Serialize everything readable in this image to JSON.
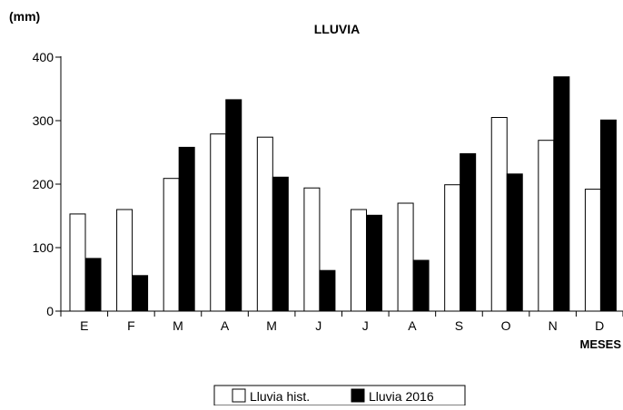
{
  "chart_data": {
    "type": "bar",
    "title": "LLUVIA",
    "ylabel": "(mm)",
    "xlabel": "MESES",
    "categories": [
      "E",
      "F",
      "M",
      "A",
      "M",
      "J",
      "J",
      "A",
      "S",
      "O",
      "N",
      "D"
    ],
    "series": [
      {
        "name": "Lluvia hist.",
        "color": "#ffffff",
        "values": [
          153,
          160,
          209,
          279,
          274,
          194,
          160,
          170,
          199,
          305,
          269,
          192
        ]
      },
      {
        "name": "Lluvia 2016",
        "color": "#000000",
        "values": [
          83,
          56,
          258,
          333,
          211,
          64,
          151,
          80,
          248,
          216,
          369,
          301
        ]
      }
    ],
    "ylim": [
      0,
      400
    ],
    "yticks": [
      "0",
      "100",
      "200",
      "300",
      "400"
    ],
    "grid": false,
    "legend_position": "bottom-center"
  }
}
